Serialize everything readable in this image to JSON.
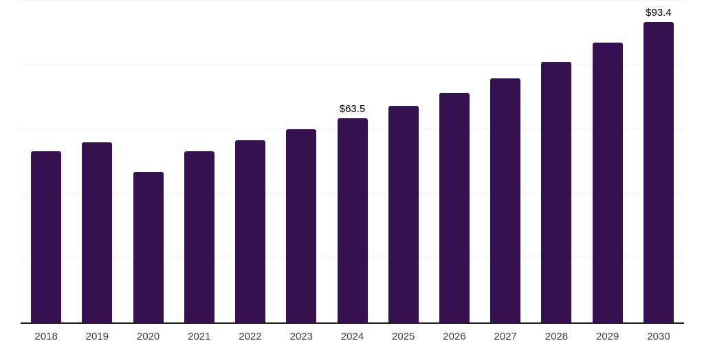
{
  "chart_data": {
    "type": "bar",
    "title": "",
    "xlabel": "",
    "ylabel": "",
    "categories": [
      "2018",
      "2019",
      "2020",
      "2021",
      "2022",
      "2023",
      "2024",
      "2025",
      "2026",
      "2027",
      "2028",
      "2029",
      "2030"
    ],
    "values": [
      53.3,
      56.0,
      46.7,
      53.2,
      56.6,
      60.0,
      63.5,
      67.4,
      71.4,
      75.9,
      81.0,
      86.9,
      93.4
    ],
    "data_labels": [
      "",
      "",
      "",
      "",
      "",
      "",
      "$63.5",
      "",
      "",
      "",
      "",
      "",
      "$93.4"
    ],
    "ylim": [
      0,
      100
    ],
    "grid_step": 20,
    "grid": true,
    "legend": false,
    "y_tick_labels_shown": false,
    "colors": {
      "bar": "#36114F",
      "axis_line": "#1d1d1d",
      "gridline": "#f2f2f2",
      "data_label_text": "#000000",
      "x_tick_text": "#3d3d3d",
      "background": "#ffffff"
    }
  }
}
